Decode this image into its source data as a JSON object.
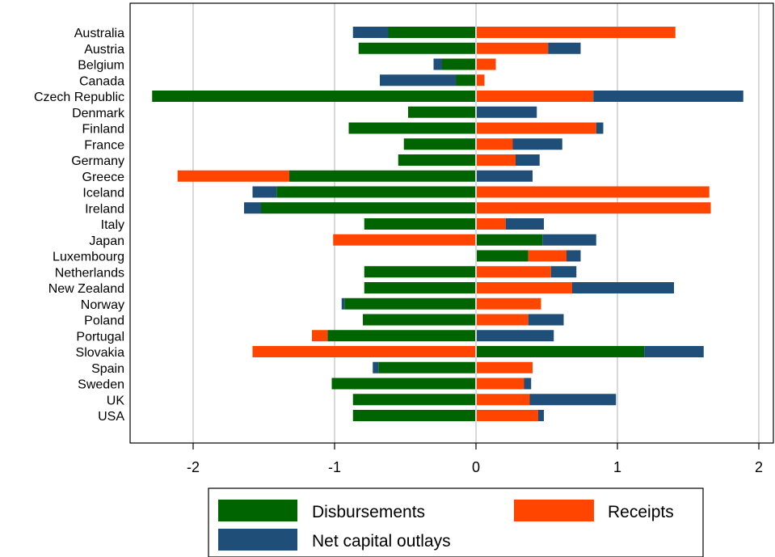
{
  "chart_data": {
    "type": "bar",
    "orientation": "horizontal",
    "stacking": "diverging",
    "categories": [
      "Australia",
      "Austria",
      "Belgium",
      "Canada",
      "Czech Republic",
      "Denmark",
      "Finland",
      "France",
      "Germany",
      "Greece",
      "Iceland",
      "Ireland",
      "Italy",
      "Japan",
      "Luxembourg",
      "Netherlands",
      "New Zealand",
      "Norway",
      "Poland",
      "Portugal",
      "Slovakia",
      "Spain",
      "Sweden",
      "UK",
      "USA"
    ],
    "series": [
      {
        "name": "Disbursements",
        "color": "#006400",
        "values": [
          -0.62,
          -0.83,
          -0.24,
          -0.14,
          -2.29,
          -0.48,
          -0.9,
          -0.51,
          -0.55,
          -1.32,
          -1.41,
          -1.52,
          -0.79,
          0.47,
          0.37,
          -0.79,
          -0.79,
          -0.93,
          -0.8,
          -1.05,
          1.19,
          -0.69,
          -1.02,
          -0.87,
          -0.87
        ]
      },
      {
        "name": "Receipts",
        "color": "#ff4500",
        "values": [
          1.41,
          0.51,
          0.14,
          0.06,
          0.83,
          0,
          0.85,
          0.26,
          0.28,
          -0.79,
          1.65,
          1.66,
          0.21,
          -1.01,
          0.27,
          0.53,
          0.68,
          0.46,
          0.37,
          -0.11,
          -1.58,
          0.4,
          0.34,
          0.38,
          0.44
        ]
      },
      {
        "name": "Net capital outlays",
        "color": "#1f4e79",
        "values": [
          -0.25,
          0.23,
          -0.06,
          -0.54,
          1.06,
          0.43,
          0.05,
          0.35,
          0.17,
          0.4,
          -0.17,
          -0.12,
          0.27,
          0.38,
          0.1,
          0.18,
          0.72,
          -0.02,
          0.25,
          0.55,
          0.42,
          -0.04,
          0.05,
          0.61,
          0.04
        ]
      }
    ],
    "xlim": [
      -2.43,
      2.1
    ],
    "xticks": [
      "-2",
      "-1",
      "0",
      "1",
      "2"
    ],
    "xlabel": "",
    "ylabel": "",
    "grid": true,
    "legend_position": "bottom",
    "legend": {
      "items": [
        {
          "label": "Disbursements",
          "color": "#006400"
        },
        {
          "label": "Receipts",
          "color": "#ff4500"
        },
        {
          "label": "Net capital outlays",
          "color": "#1f4e79"
        }
      ]
    }
  }
}
